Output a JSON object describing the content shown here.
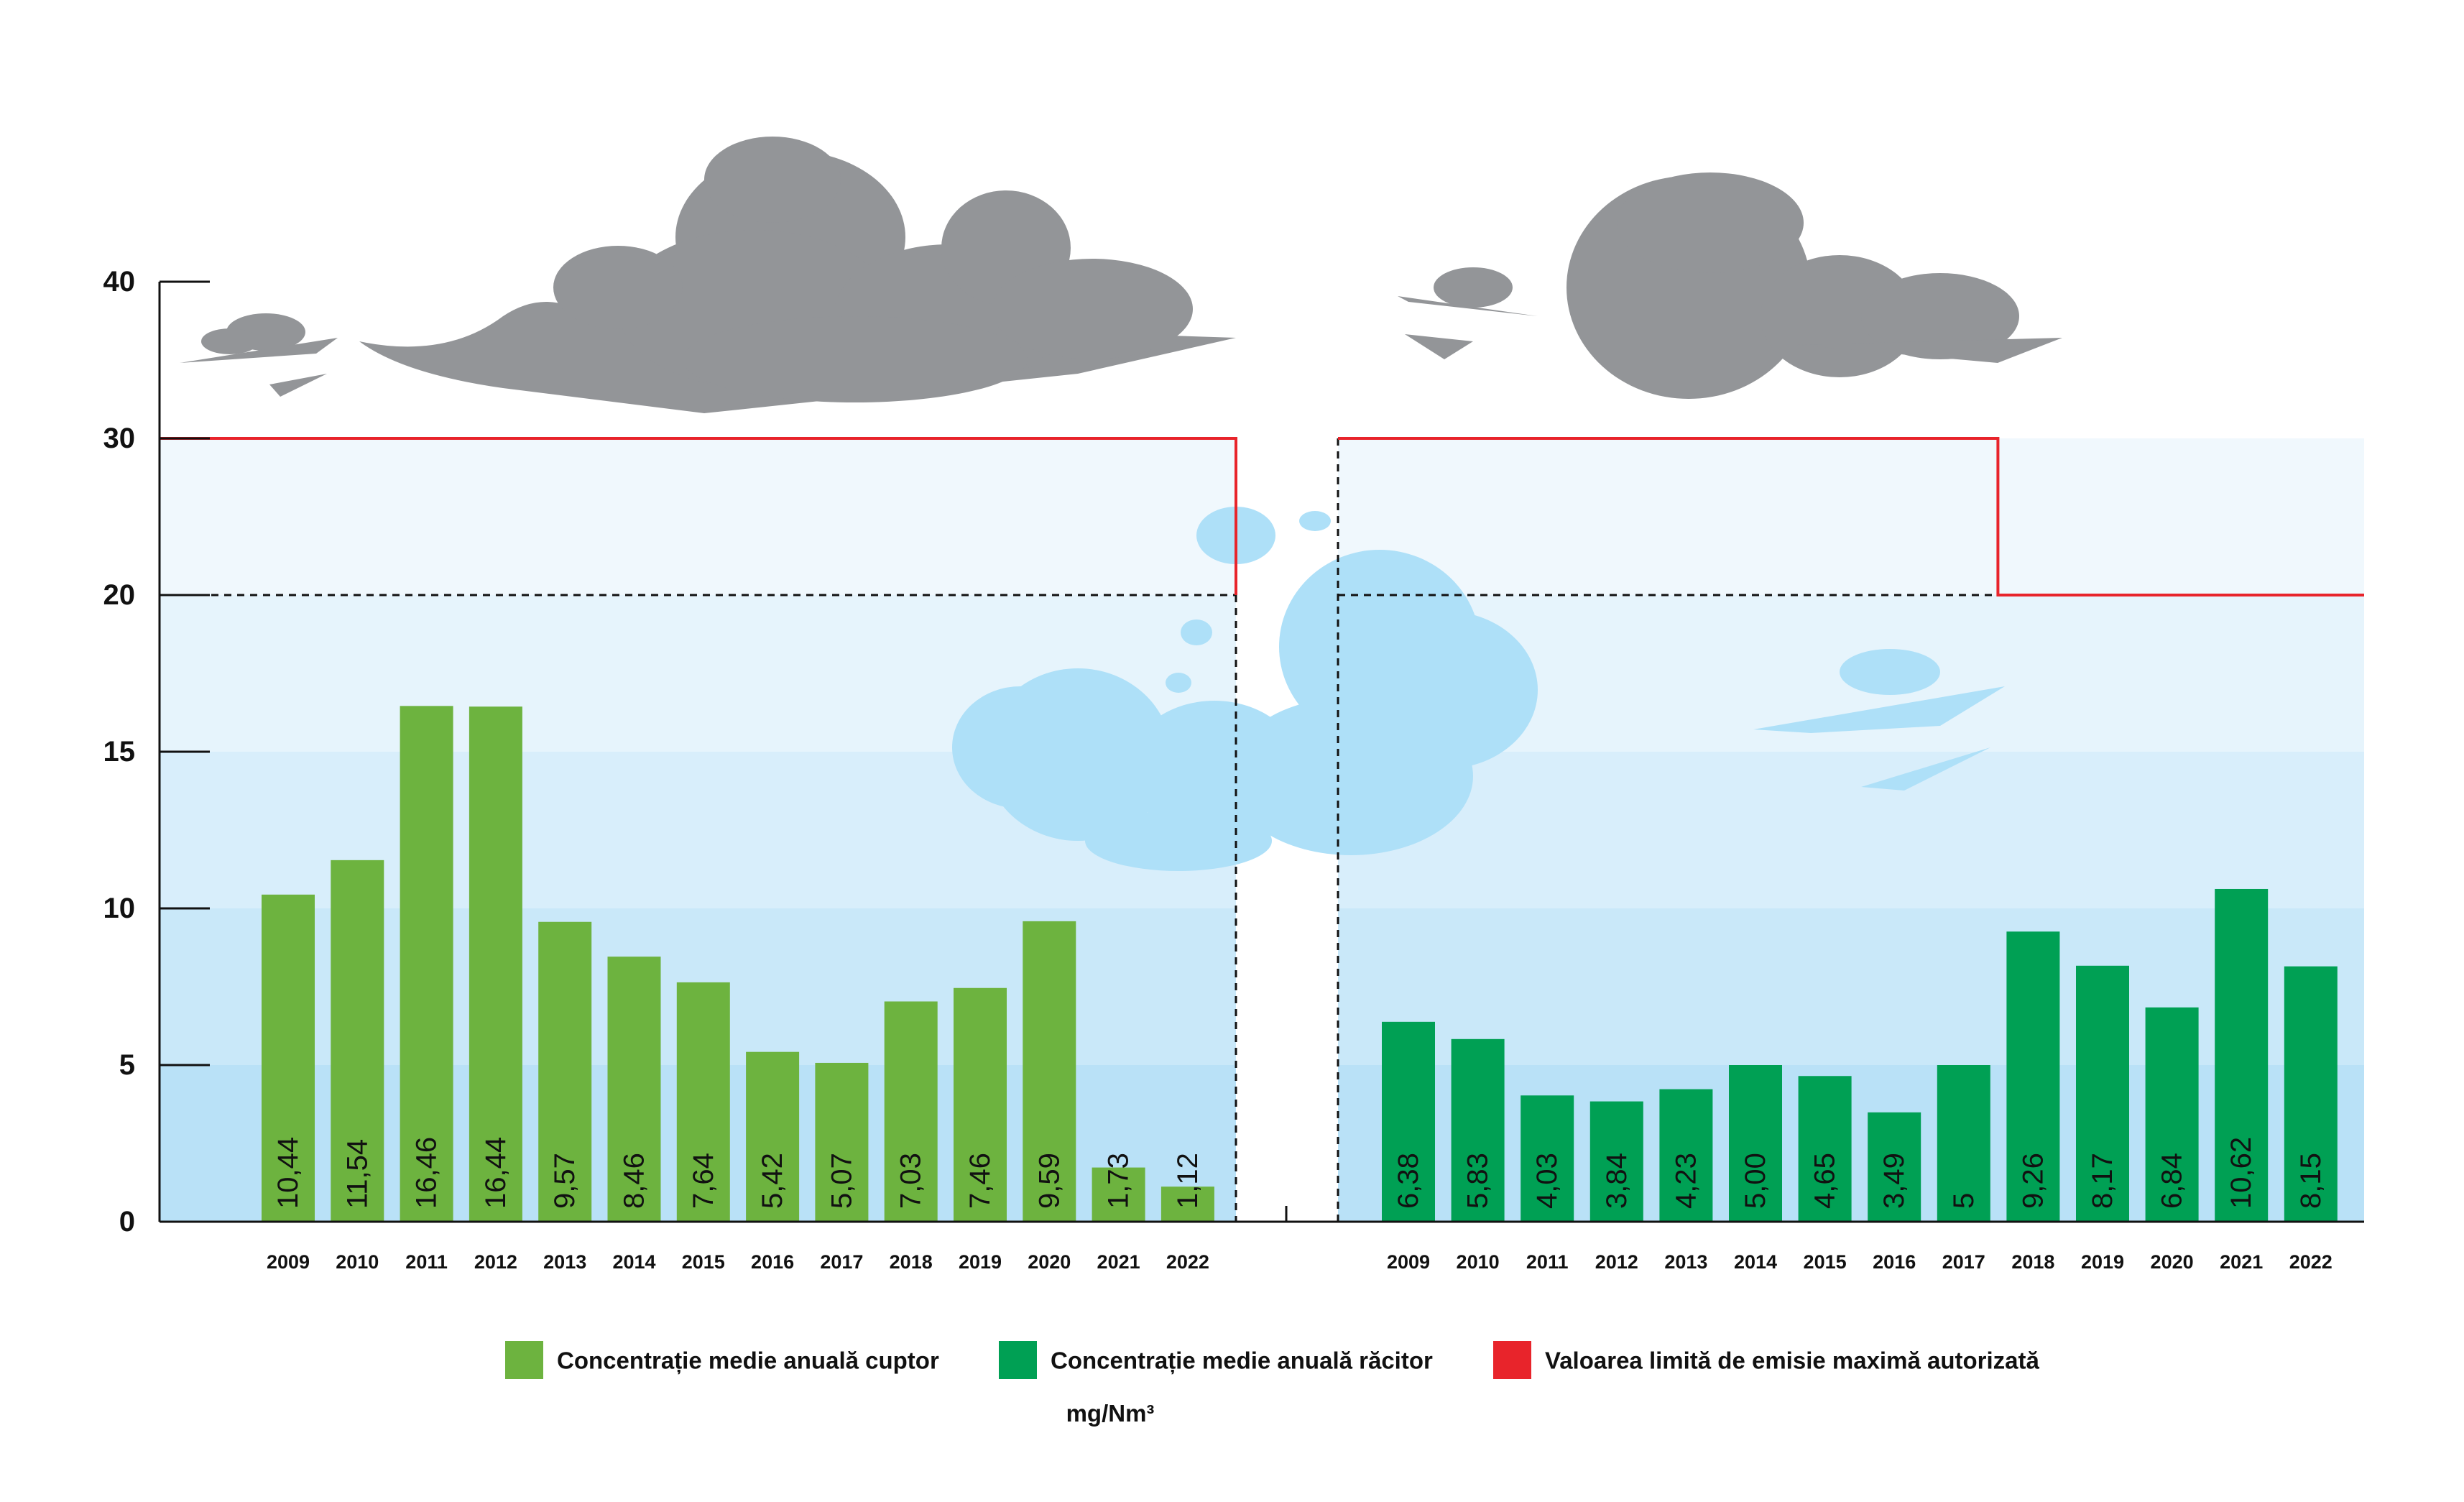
{
  "colors": {
    "cuptor": "#6db33f",
    "racitor": "#00a054",
    "limit": "#e8242b",
    "band_1": "#b9e1f7",
    "band_2": "#c9e8f9",
    "band_3": "#d8eefb",
    "band_4": "#e6f4fc",
    "band_5": "#f0f8fd",
    "cloud_grey": "#939598",
    "cloud_blue": "#aee0f8"
  },
  "chart_data": {
    "type": "bar",
    "unit": "mg/Nm³",
    "y_ticks": [
      "0",
      "5",
      "10",
      "15",
      "20",
      "30",
      "40"
    ],
    "ylim": [
      0,
      40
    ],
    "grid": false,
    "legend_placement": "bottom-center",
    "panels": [
      {
        "series": {
          "name": "Concentrație medie anuală cuptor",
          "color_key": "cuptor",
          "categories": [
            "2009",
            "2010",
            "2011",
            "2012",
            "2013",
            "2014",
            "2015",
            "2016",
            "2017",
            "2018",
            "2019",
            "2020",
            "2021",
            "2022"
          ],
          "values": [
            10.44,
            11.54,
            16.46,
            16.44,
            9.57,
            8.46,
            7.64,
            5.42,
            5.07,
            7.03,
            7.46,
            9.59,
            1.73,
            1.12
          ],
          "labels": [
            "10,44",
            "11,54",
            "16,46",
            "16,44",
            "9,57",
            "8,46",
            "7,64",
            "5,42",
            "5,07",
            "7,03",
            "7,46",
            "9,59",
            "1,73",
            "1,12"
          ]
        },
        "limit_steps": [
          {
            "from": "2009",
            "to": "2022",
            "value": 30
          }
        ],
        "dashed_reference": 20
      },
      {
        "series": {
          "name": "Concentrație medie anuală răcitor",
          "color_key": "racitor",
          "categories": [
            "2009",
            "2010",
            "2011",
            "2012",
            "2013",
            "2014",
            "2015",
            "2016",
            "2017",
            "2018",
            "2019",
            "2020",
            "2021",
            "2022"
          ],
          "values": [
            6.38,
            5.83,
            4.03,
            3.84,
            4.23,
            5.0,
            4.65,
            3.49,
            5,
            9.26,
            8.17,
            6.84,
            10.62,
            8.15
          ],
          "labels": [
            "6,38",
            "5,83",
            "4,03",
            "3,84",
            "4,23",
            "5,00",
            "4,65",
            "3,49",
            "5",
            "9,26",
            "8,17",
            "6,84",
            "10,62",
            "8,15"
          ]
        },
        "limit_steps": [
          {
            "from": "2009",
            "to": "2017",
            "value": 30
          },
          {
            "from": "2018",
            "to": "2022",
            "value": 20
          }
        ],
        "dashed_reference": 20
      }
    ],
    "legend": [
      {
        "label": "Concentrație medie anuală cuptor",
        "color_key": "cuptor"
      },
      {
        "label": "Concentrație medie anuală răcitor",
        "color_key": "racitor"
      },
      {
        "label": "Valoarea limită de emisie maximă autorizată",
        "color_key": "limit"
      }
    ]
  }
}
